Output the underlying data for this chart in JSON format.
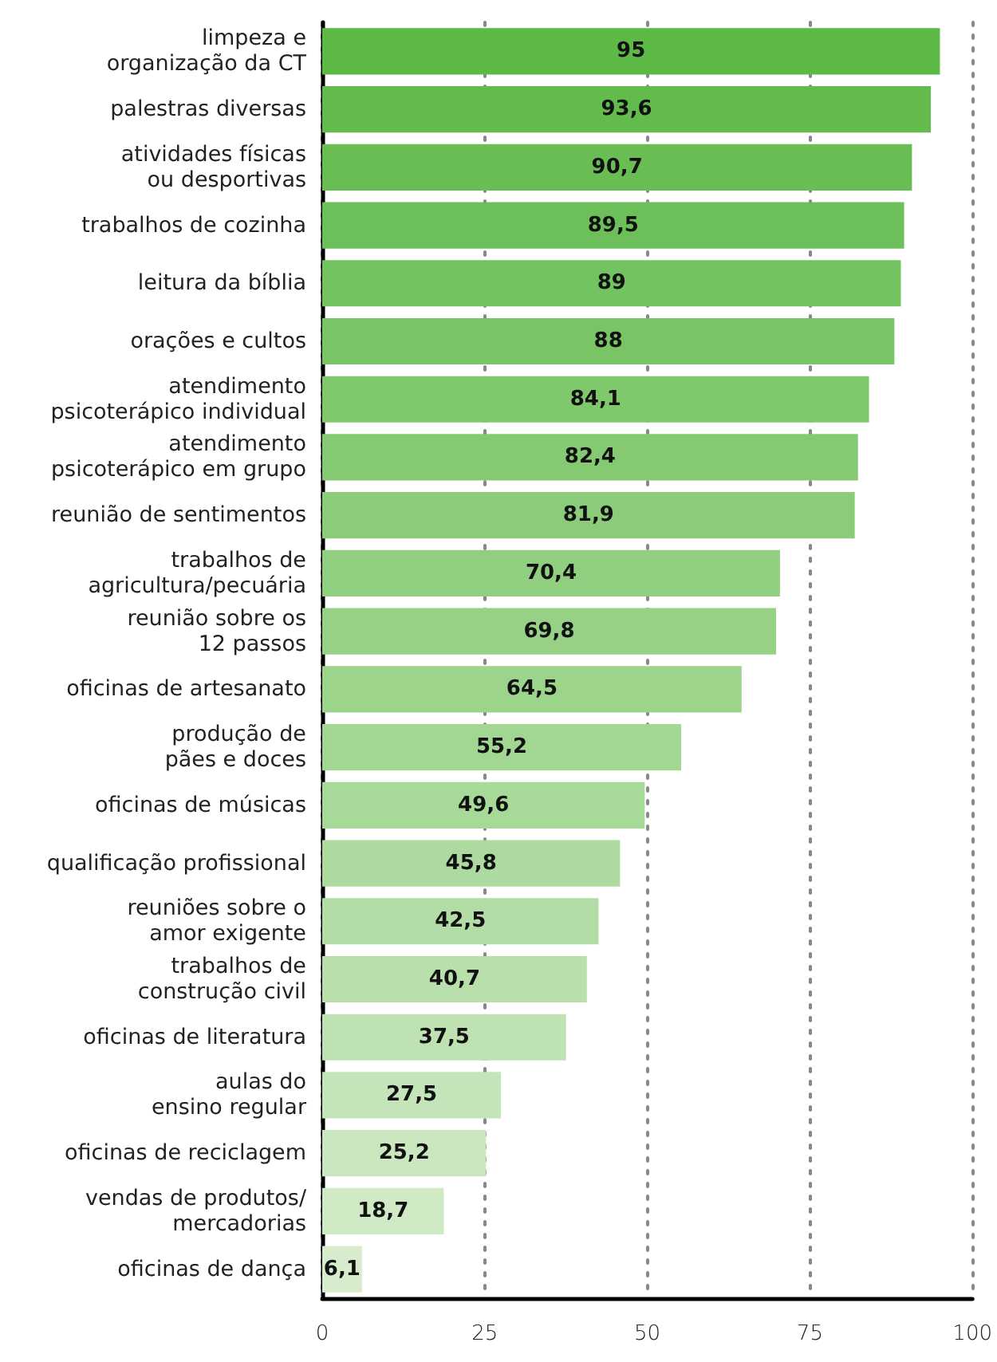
{
  "chart_data": {
    "type": "bar",
    "orientation": "horizontal",
    "categories": [
      "limpeza e\norganização da CT",
      "palestras diversas",
      "atividades físicas\nou desportivas",
      "trabalhos de cozinha",
      "leitura da bíblia",
      "orações e cultos",
      "atendimento\npsicoterápico individual",
      "atendimento\npsicoterápico em grupo",
      "reunião de sentimentos",
      "trabalhos de\nagricultura/pecuária",
      "reunião sobre os\n12 passos",
      "oficinas de artesanato",
      "produção de\npães e doces",
      "oficinas de músicas",
      "qualificação profissional",
      "reuniões sobre o\namor exigente",
      "trabalhos de\nconstrução civil",
      "oficinas de literatura",
      "aulas do\nensino regular",
      "oficinas de reciclagem",
      "vendas de produtos/\nmercadorias",
      "oficinas de dança"
    ],
    "values": [
      95,
      93.6,
      90.7,
      89.5,
      89,
      88,
      84.1,
      82.4,
      81.9,
      70.4,
      69.8,
      64.5,
      55.2,
      49.6,
      45.8,
      42.5,
      40.7,
      37.5,
      27.5,
      25.2,
      18.7,
      6.1
    ],
    "value_labels": [
      "95",
      "93,6",
      "90,7",
      "89,5",
      "89",
      "88",
      "84,1",
      "82,4",
      "81,9",
      "70,4",
      "69,8",
      "64,5",
      "55,2",
      "49,6",
      "45,8",
      "42,5",
      "40,7",
      "37,5",
      "27,5",
      "25,2",
      "18,7",
      "6,1"
    ],
    "colors": [
      "#5cb946",
      "#62bb4c",
      "#68be53",
      "#6dc059",
      "#73c360",
      "#79c566",
      "#7fc86c",
      "#85ca73",
      "#8acc79",
      "#90cf7f",
      "#96d186",
      "#9cd48c",
      "#a2d693",
      "#a7d999",
      "#addb9f",
      "#b3dda6",
      "#b9e0ac",
      "#bfe2b2",
      "#c4e5b9",
      "#cae7bf",
      "#d0eac6",
      "#d6eccc"
    ],
    "xlim": [
      0,
      100
    ],
    "xticks": [
      0,
      25,
      50,
      75,
      100
    ],
    "grid": "x"
  }
}
